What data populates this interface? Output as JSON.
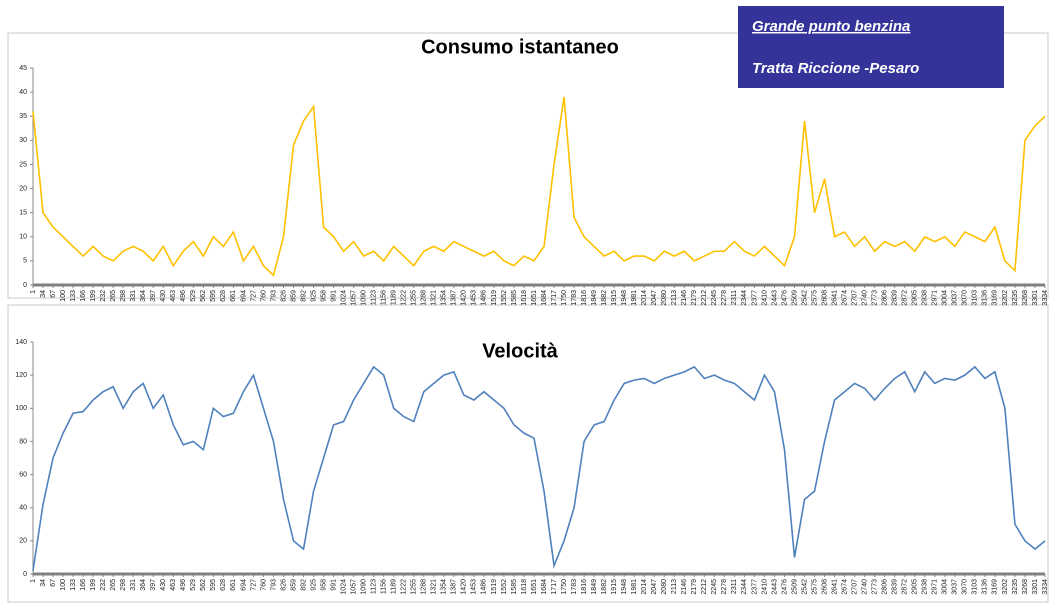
{
  "textbox": {
    "lines": [
      "Grande punto benzina",
      "Tratta Riccione -Pesaro"
    ],
    "color": "#33339a"
  },
  "chart_data": [
    {
      "type": "line",
      "title": "Consumo istantaneo",
      "x": [
        1,
        34,
        67,
        100,
        133,
        166,
        199,
        232,
        265,
        298,
        331,
        364,
        397,
        430,
        463,
        496,
        529,
        562,
        595,
        628,
        661,
        694,
        727,
        760,
        793,
        826,
        859,
        892,
        925,
        958,
        991,
        1024,
        1057,
        1090,
        1123,
        1156,
        1189,
        1222,
        1255,
        1288,
        1321,
        1354,
        1387,
        1420,
        1453,
        1486,
        1519,
        1552,
        1585,
        1618,
        1651,
        1684,
        1717,
        1750,
        1783,
        1816,
        1849,
        1882,
        1915,
        1948,
        1981,
        2014,
        2047,
        2080,
        2113,
        2146,
        2179,
        2212,
        2245,
        2278,
        2311,
        2344,
        2377,
        2410,
        2443,
        2476,
        2509,
        2542,
        2575,
        2608,
        2641,
        2674,
        2707,
        2740,
        2773,
        2806,
        2839,
        2872,
        2905,
        2938,
        2971,
        3004,
        3037,
        3070,
        3103,
        3136,
        3169,
        3202,
        3235,
        3268,
        3301,
        3334
      ],
      "series": [
        {
          "color": "#ffc000",
          "values": [
            36,
            15,
            12,
            10,
            8,
            6,
            8,
            6,
            5,
            7,
            8,
            7,
            5,
            8,
            4,
            7,
            9,
            6,
            10,
            8,
            11,
            5,
            8,
            4,
            2,
            10,
            29,
            34,
            37,
            12,
            10,
            7,
            9,
            6,
            7,
            5,
            8,
            6,
            4,
            7,
            8,
            7,
            9,
            8,
            7,
            6,
            7,
            5,
            4,
            6,
            5,
            8,
            25,
            39,
            14,
            10,
            8,
            6,
            7,
            5,
            6,
            6,
            5,
            7,
            6,
            7,
            5,
            6,
            7,
            7,
            9,
            7,
            6,
            8,
            6,
            4,
            10,
            34,
            15,
            22,
            10,
            11,
            8,
            10,
            7,
            9,
            8,
            9,
            7,
            10,
            9,
            10,
            8,
            11,
            10,
            9,
            12,
            5,
            3,
            30,
            33,
            35
          ]
        }
      ],
      "xlim": [
        1,
        3334
      ],
      "ylim": [
        0,
        45
      ],
      "yticks": [
        0,
        5,
        10,
        15,
        20,
        25,
        30,
        35,
        40,
        45
      ],
      "grid": false
    },
    {
      "type": "line",
      "title": "Velocità",
      "x": [
        1,
        34,
        67,
        100,
        133,
        166,
        199,
        232,
        265,
        298,
        331,
        364,
        397,
        430,
        463,
        496,
        529,
        562,
        595,
        628,
        661,
        694,
        727,
        760,
        793,
        826,
        859,
        892,
        925,
        958,
        991,
        1024,
        1057,
        1090,
        1123,
        1156,
        1189,
        1222,
        1255,
        1288,
        1321,
        1354,
        1387,
        1420,
        1453,
        1486,
        1519,
        1552,
        1585,
        1618,
        1651,
        1684,
        1717,
        1750,
        1783,
        1816,
        1849,
        1882,
        1915,
        1948,
        1981,
        2014,
        2047,
        2080,
        2113,
        2146,
        2179,
        2212,
        2245,
        2278,
        2311,
        2344,
        2377,
        2410,
        2443,
        2476,
        2509,
        2542,
        2575,
        2608,
        2641,
        2674,
        2707,
        2740,
        2773,
        2806,
        2839,
        2872,
        2905,
        2938,
        2971,
        3004,
        3037,
        3070,
        3103,
        3136,
        3169,
        3202,
        3235,
        3268,
        3301,
        3334
      ],
      "series": [
        {
          "color": "#4f81bd",
          "values": [
            2,
            42,
            70,
            85,
            97,
            98,
            105,
            110,
            113,
            100,
            110,
            115,
            100,
            108,
            90,
            78,
            80,
            75,
            100,
            95,
            97,
            110,
            120,
            100,
            80,
            45,
            20,
            15,
            50,
            70,
            90,
            92,
            105,
            115,
            125,
            120,
            100,
            95,
            92,
            110,
            115,
            120,
            122,
            108,
            105,
            110,
            105,
            100,
            90,
            85,
            82,
            50,
            5,
            20,
            40,
            80,
            90,
            92,
            105,
            115,
            117,
            118,
            115,
            118,
            120,
            122,
            125,
            118,
            120,
            117,
            115,
            110,
            105,
            120,
            110,
            75,
            10,
            45,
            50,
            80,
            105,
            110,
            115,
            112,
            105,
            112,
            118,
            122,
            110,
            122,
            115,
            118,
            117,
            120,
            125,
            118,
            122,
            100,
            30,
            20,
            15,
            20
          ]
        }
      ],
      "xlim": [
        1,
        3334
      ],
      "ylim": [
        0,
        140
      ],
      "yticks": [
        0,
        20,
        40,
        60,
        80,
        100,
        120,
        140
      ],
      "grid": false
    }
  ]
}
